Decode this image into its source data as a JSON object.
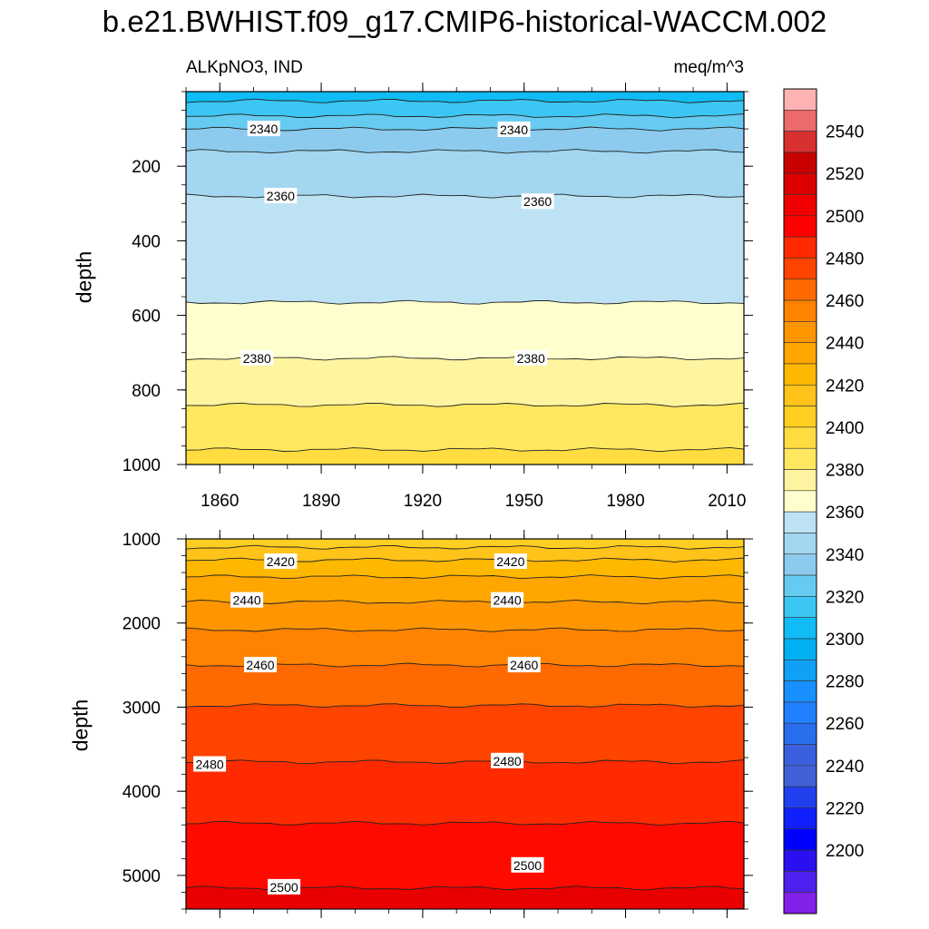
{
  "title": "b.e21.BWHIST.f09_g17.CMIP6-historical-WACCM.002",
  "chart_data": [
    {
      "type": "contour",
      "panel": "upper",
      "subtitle_left": "ALKpNO3, IND",
      "subtitle_right": "meq/m^3",
      "ylabel": "depth",
      "xlim": [
        1850,
        2015
      ],
      "ylim": [
        0,
        1000
      ],
      "x_ticks": [
        "1860",
        "1890",
        "1920",
        "1950",
        "1980",
        "2010"
      ],
      "y_ticks": [
        "200",
        "400",
        "600",
        "800",
        "1000"
      ],
      "bands": [
        {
          "from": 0,
          "to": 25,
          "color": "#10bcf5"
        },
        {
          "from": 25,
          "to": 65,
          "color": "#3cc6f3"
        },
        {
          "from": 65,
          "to": 100,
          "color": "#66cbf1"
        },
        {
          "from": 100,
          "to": 160,
          "color": "#8ccbee"
        },
        {
          "from": 160,
          "to": 280,
          "color": "#a3d6f0"
        },
        {
          "from": 280,
          "to": 565,
          "color": "#bde2f3"
        },
        {
          "from": 565,
          "to": 715,
          "color": "#ffffcd"
        },
        {
          "from": 715,
          "to": 840,
          "color": "#fff5a0"
        },
        {
          "from": 840,
          "to": 960,
          "color": "#ffe860"
        },
        {
          "from": 960,
          "to": 1000,
          "color": "#ffdd40"
        }
      ],
      "contour_labels": [
        {
          "text": "2340",
          "x": 1873,
          "depth": 100
        },
        {
          "text": "2340",
          "x": 1947,
          "depth": 102
        },
        {
          "text": "2360",
          "x": 1878,
          "depth": 280
        },
        {
          "text": "2360",
          "x": 1954,
          "depth": 295
        },
        {
          "text": "2380",
          "x": 1871,
          "depth": 715
        },
        {
          "text": "2380",
          "x": 1952,
          "depth": 715
        }
      ]
    },
    {
      "type": "contour",
      "panel": "lower",
      "ylabel": "depth",
      "xlim": [
        1850,
        2015
      ],
      "ylim": [
        1000,
        5400
      ],
      "y_ticks": [
        "1000",
        "2000",
        "3000",
        "4000",
        "5000"
      ],
      "bands": [
        {
          "from": 1000,
          "to": 1100,
          "color": "#ffce20"
        },
        {
          "from": 1100,
          "to": 1250,
          "color": "#ffc31a"
        },
        {
          "from": 1250,
          "to": 1450,
          "color": "#ffb800"
        },
        {
          "from": 1450,
          "to": 1750,
          "color": "#ffa600"
        },
        {
          "from": 1750,
          "to": 2080,
          "color": "#ff9600"
        },
        {
          "from": 2080,
          "to": 2500,
          "color": "#ff8200"
        },
        {
          "from": 2500,
          "to": 2980,
          "color": "#ff6a00"
        },
        {
          "from": 2980,
          "to": 3650,
          "color": "#ff4400"
        },
        {
          "from": 3650,
          "to": 4380,
          "color": "#ff2a00"
        },
        {
          "from": 4380,
          "to": 5150,
          "color": "#ff0a00"
        },
        {
          "from": 5150,
          "to": 5400,
          "color": "#e80000"
        }
      ],
      "contour_labels": [
        {
          "text": "2420",
          "x": 1878,
          "depth": 1270
        },
        {
          "text": "2420",
          "x": 1946,
          "depth": 1270
        },
        {
          "text": "2440",
          "x": 1868,
          "depth": 1730
        },
        {
          "text": "2440",
          "x": 1945,
          "depth": 1730
        },
        {
          "text": "2460",
          "x": 1872,
          "depth": 2500
        },
        {
          "text": "2460",
          "x": 1950,
          "depth": 2500
        },
        {
          "text": "2480",
          "x": 1857,
          "depth": 3680
        },
        {
          "text": "2480",
          "x": 1945,
          "depth": 3640
        },
        {
          "text": "2500",
          "x": 1879,
          "depth": 5140
        },
        {
          "text": "2500",
          "x": 1951,
          "depth": 4880
        }
      ]
    }
  ],
  "colorbar": {
    "labels": [
      "2540",
      "2520",
      "2500",
      "2480",
      "2460",
      "2440",
      "2420",
      "2400",
      "2380",
      "2360",
      "2340",
      "2320",
      "2300",
      "2280",
      "2260",
      "2240",
      "2220",
      "2200"
    ],
    "colors": [
      "#ffb2b2",
      "#ec6a6a",
      "#d93030",
      "#c80000",
      "#dc0000",
      "#f00000",
      "#ff0000",
      "#ff2a00",
      "#ff4400",
      "#ff6a00",
      "#ff8200",
      "#ff9600",
      "#ffa600",
      "#ffb800",
      "#ffc31a",
      "#ffce20",
      "#ffdd40",
      "#ffe860",
      "#fff5a0",
      "#ffffcd",
      "#bde2f3",
      "#a3d6f0",
      "#8ccbee",
      "#66cbf1",
      "#3cc6f3",
      "#10bcf5",
      "#00b0f0",
      "#10a0f5",
      "#1890ff",
      "#2080ff",
      "#2a6ef0",
      "#3a60e0",
      "#4060d8",
      "#2040f0",
      "#1020ff",
      "#0000ff",
      "#2a10f0",
      "#5020f0",
      "#8020e8"
    ]
  }
}
